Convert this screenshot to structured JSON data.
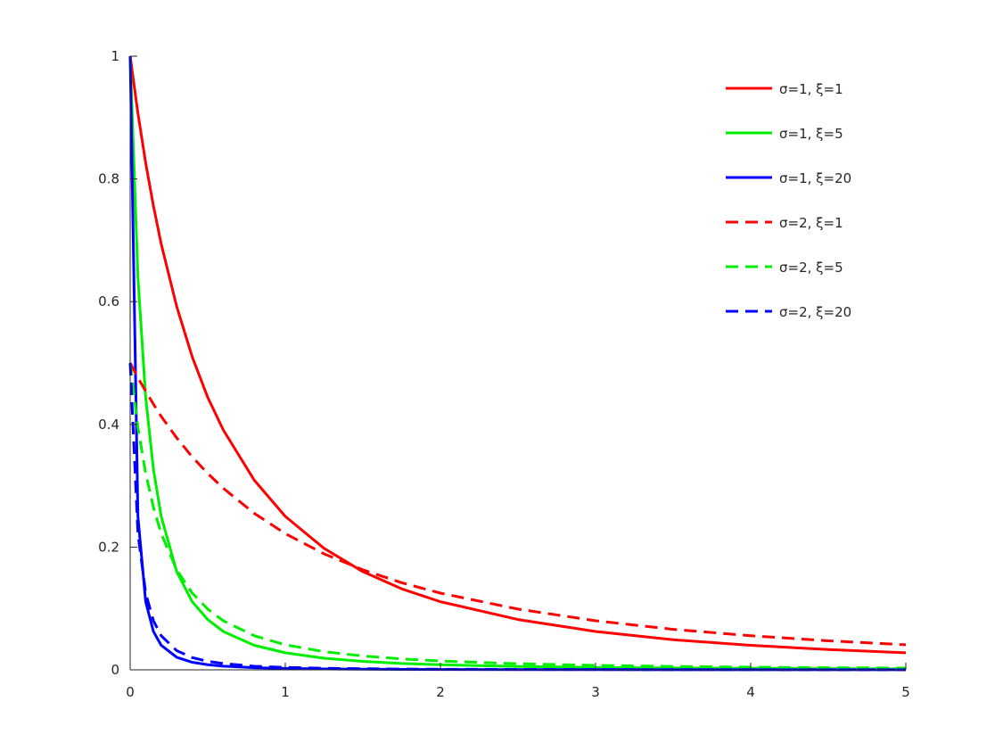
{
  "chart_data": {
    "type": "line",
    "title": "",
    "xlabel": "",
    "ylabel": "",
    "xlim": [
      0,
      5
    ],
    "ylim": [
      0,
      1
    ],
    "x_ticks": [
      "0",
      "1",
      "2",
      "3",
      "4",
      "5"
    ],
    "y_ticks": [
      "0",
      "0.2",
      "0.4",
      "0.6",
      "0.8",
      "1"
    ],
    "grid": false,
    "legend_position": "top-right",
    "x": [
      0,
      0.05,
      0.1,
      0.15,
      0.2,
      0.3,
      0.4,
      0.5,
      0.6,
      0.8,
      1,
      1.25,
      1.5,
      1.75,
      2,
      2.5,
      3,
      3.5,
      4,
      4.5,
      5
    ],
    "series": [
      {
        "name": "σ=1, ξ=1",
        "color": "#ff0000",
        "dash": "solid",
        "values": [
          1,
          0.907,
          0.826,
          0.756,
          0.694,
          0.592,
          0.51,
          0.444,
          0.391,
          0.309,
          0.25,
          0.198,
          0.16,
          0.132,
          0.111,
          0.082,
          0.0625,
          0.049,
          0.04,
          0.033,
          0.0278
        ]
      },
      {
        "name": "σ=1, ξ=5",
        "color": "#00ee00",
        "dash": "solid",
        "values": [
          1,
          0.64,
          0.444,
          0.327,
          0.25,
          0.16,
          0.111,
          0.082,
          0.0625,
          0.04,
          0.0278,
          0.0189,
          0.0138,
          0.0104,
          0.0083,
          0.0055,
          0.0039,
          0.0029,
          0.0023,
          0.0018,
          0.0015
        ]
      },
      {
        "name": "σ=1, ξ=20",
        "color": "#0000ff",
        "dash": "solid",
        "values": [
          1,
          0.25,
          0.111,
          0.0625,
          0.04,
          0.0204,
          0.0123,
          0.0083,
          0.006,
          0.0035,
          0.0023,
          0.0015,
          0.0011,
          0.0008,
          0.0006,
          0.0004,
          0.0003,
          0.0002,
          0.0002,
          0.0001,
          0.0001
        ]
      },
      {
        "name": "σ=2, ξ=1",
        "color": "#ff0000",
        "dash": "dashed",
        "values": [
          0.5,
          0.476,
          0.454,
          0.433,
          0.413,
          0.378,
          0.347,
          0.32,
          0.296,
          0.255,
          0.222,
          0.189,
          0.163,
          0.142,
          0.125,
          0.099,
          0.08,
          0.066,
          0.0556,
          0.0473,
          0.0408
        ]
      },
      {
        "name": "σ=2, ξ=5",
        "color": "#00ee00",
        "dash": "dashed",
        "values": [
          0.5,
          0.395,
          0.32,
          0.265,
          0.222,
          0.163,
          0.125,
          0.099,
          0.08,
          0.0556,
          0.0408,
          0.0296,
          0.0226,
          0.0178,
          0.0144,
          0.0099,
          0.0073,
          0.0055,
          0.0043,
          0.0035,
          0.0029
        ]
      },
      {
        "name": "σ=2, ξ=20",
        "color": "#0000ff",
        "dash": "dashed",
        "values": [
          0.5,
          0.222,
          0.125,
          0.08,
          0.0556,
          0.0313,
          0.02,
          0.0139,
          0.0102,
          0.0059,
          0.0039,
          0.0026,
          0.0018,
          0.0013,
          0.001,
          0.0007,
          0.0005,
          0.0004,
          0.0003,
          0.0002,
          0.0002
        ]
      }
    ]
  }
}
